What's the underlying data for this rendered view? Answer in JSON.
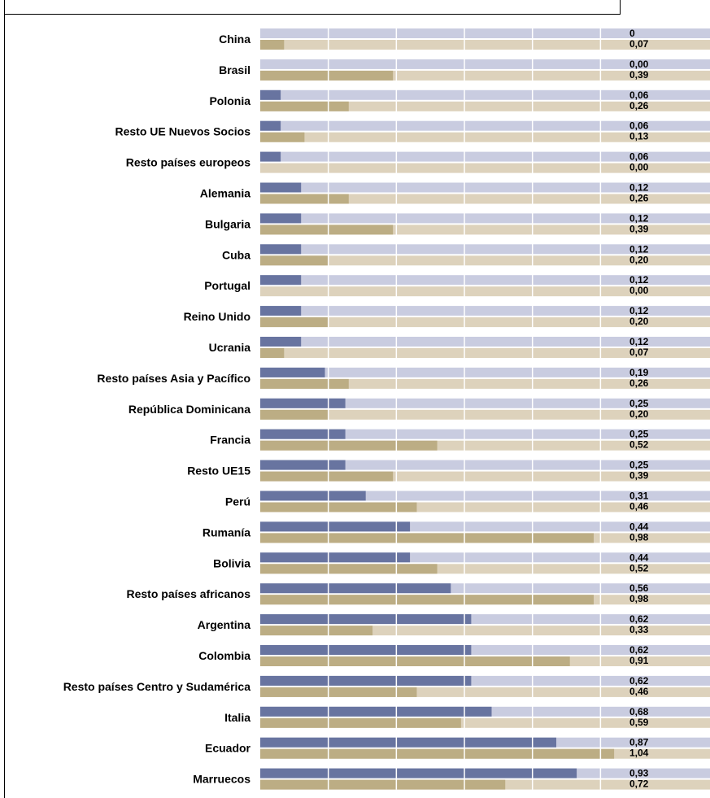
{
  "chart_data": {
    "type": "bar",
    "orientation": "horizontal",
    "categories": [
      "China",
      "Brasil",
      "Polonia",
      "Resto UE Nuevos Socios",
      "Resto países europeos",
      "Alemania",
      "Bulgaria",
      "Cuba",
      "Portugal",
      "Reino Unido",
      "Ucrania",
      "Resto países Asia y Pacífico",
      "República Dominicana",
      "Francia",
      "Resto UE15",
      "Perú",
      "Rumanía",
      "Bolivia",
      "Resto países africanos",
      "Argentina",
      "Colombia",
      "Resto países Centro y Sudamérica",
      "Italia",
      "Ecuador",
      "Marruecos"
    ],
    "series": [
      {
        "values": [
          0,
          0,
          0.06,
          0.06,
          0.06,
          0.12,
          0.12,
          0.12,
          0.12,
          0.12,
          0.12,
          0.19,
          0.25,
          0.25,
          0.25,
          0.31,
          0.44,
          0.44,
          0.56,
          0.62,
          0.62,
          0.62,
          0.68,
          0.87,
          0.93
        ],
        "labels": [
          "0",
          "0,00",
          "0,06",
          "0,06",
          "0,06",
          "0,12",
          "0,12",
          "0,12",
          "0,12",
          "0,12",
          "0,12",
          "0,19",
          "0,25",
          "0,25",
          "0,25",
          "0,31",
          "0,44",
          "0,44",
          "0,56",
          "0,62",
          "0,62",
          "0,62",
          "0,68",
          "0,87",
          "0,93"
        ]
      },
      {
        "values": [
          0.07,
          0.39,
          0.26,
          0.13,
          0,
          0.26,
          0.39,
          0.2,
          0,
          0.2,
          0.07,
          0.26,
          0.2,
          0.52,
          0.39,
          0.46,
          0.98,
          0.52,
          0.98,
          0.33,
          0.91,
          0.46,
          0.59,
          1.04,
          0.72
        ],
        "labels": [
          "0,07",
          "0,39",
          "0,26",
          "0,13",
          "0,00",
          "0,26",
          "0,39",
          "0,20",
          "0,00",
          "0,20",
          "0,07",
          "0,26",
          "0,20",
          "0,52",
          "0,39",
          "0,46",
          "0,98",
          "0,52",
          "0,98",
          "0,33",
          "0,91",
          "0,46",
          "0,59",
          "1,04",
          "0,72"
        ]
      }
    ],
    "xlim": [
      0,
      1.3
    ],
    "grid": true,
    "colors": {
      "series1_bar": "#6874a0",
      "series1_track": "#c9cce0",
      "series2_bar": "#bcad84",
      "series2_track": "#ddd2bc",
      "grid": "#ffffff",
      "frame": "#000000"
    }
  }
}
